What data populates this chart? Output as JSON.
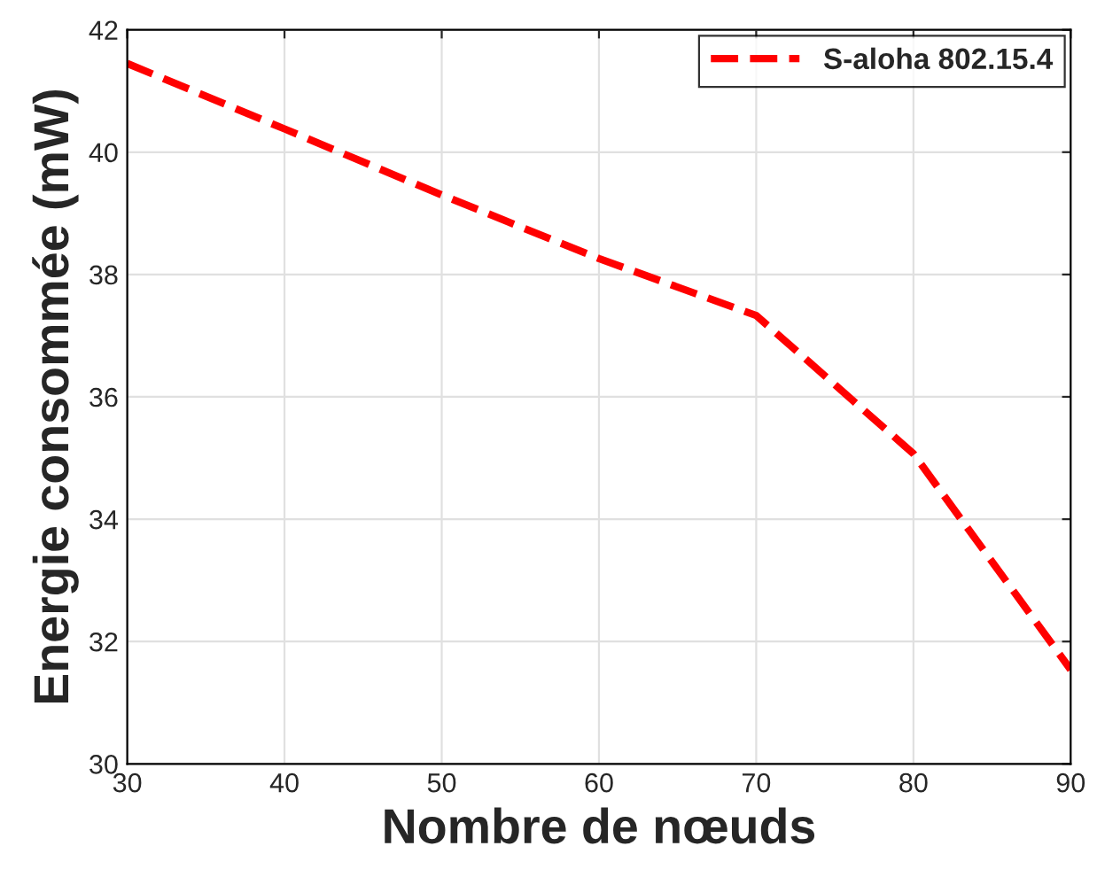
{
  "chart_data": {
    "type": "line",
    "xlabel": "Nombre de nœuds",
    "ylabel": "Energie consommée (mW)",
    "x": [
      30,
      40,
      50,
      60,
      70,
      80,
      90
    ],
    "series": [
      {
        "name": "S-aloha 802.15.4",
        "color": "#ff0000",
        "values": [
          41.45,
          40.38,
          39.3,
          38.26,
          37.33,
          35.07,
          31.54
        ]
      }
    ],
    "xlim": [
      30,
      90
    ],
    "xticks": [
      30,
      40,
      50,
      60,
      70,
      80,
      90
    ],
    "ylim": [
      30,
      42
    ],
    "yticks": [
      30,
      32,
      34,
      36,
      38,
      40,
      42
    ],
    "grid": true,
    "legend": "top right",
    "line_style": "dashed",
    "marker": "none"
  }
}
